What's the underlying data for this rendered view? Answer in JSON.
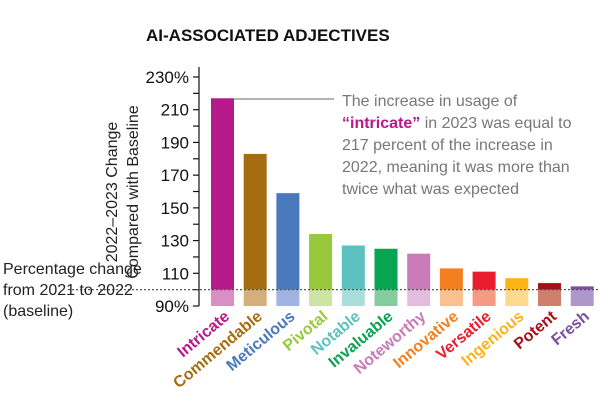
{
  "chart_data": {
    "type": "bar",
    "title": "AI-ASSOCIATED ADJECTIVES",
    "ylabel": [
      "2022–2023 Change",
      "Compared with Baseline"
    ],
    "baseline_label": [
      "Percentage change",
      "from 2021 to 2022",
      "(baseline)"
    ],
    "ylim": [
      90,
      230
    ],
    "baseline": 100,
    "yticks": [
      {
        "v": 230,
        "label": "230%"
      },
      {
        "v": 210,
        "label": "210"
      },
      {
        "v": 190,
        "label": "190"
      },
      {
        "v": 170,
        "label": "170"
      },
      {
        "v": 150,
        "label": "150"
      },
      {
        "v": 130,
        "label": "130"
      },
      {
        "v": 110,
        "label": "110"
      },
      {
        "v": 90,
        "label": "90%"
      }
    ],
    "categories": [
      "Intricate",
      "Commendable",
      "Meticulous",
      "Pivotal",
      "Notable",
      "Invaluable",
      "Noteworthy",
      "Innovative",
      "Versatile",
      "Ingenious",
      "Potent",
      "Fresh"
    ],
    "values": [
      217,
      183,
      159,
      134,
      127,
      125,
      122,
      113,
      111,
      107,
      104,
      102
    ],
    "colors": [
      "#b5198a",
      "#a66c10",
      "#4a78bd",
      "#98c93c",
      "#5bc2bf",
      "#0aa352",
      "#c97bb8",
      "#f47f20",
      "#e81e2e",
      "#fbb316",
      "#a50f18",
      "#7b4ea0"
    ],
    "pale_colors": [
      "#d98fc4",
      "#d4ae7c",
      "#9fb4e0",
      "#cde4a5",
      "#abdedb",
      "#82cc9e",
      "#e2bde0",
      "#fcc08e",
      "#f69a86",
      "#fdd98c",
      "#cf7f6c",
      "#ad97cb"
    ],
    "annotation": {
      "lines": [
        "The increase in usage of",
        "in 2023 was equal to",
        "217 percent of the increase in",
        "2022, meaning it was more than",
        "twice what was expected"
      ],
      "highlight": "“intricate”"
    }
  }
}
